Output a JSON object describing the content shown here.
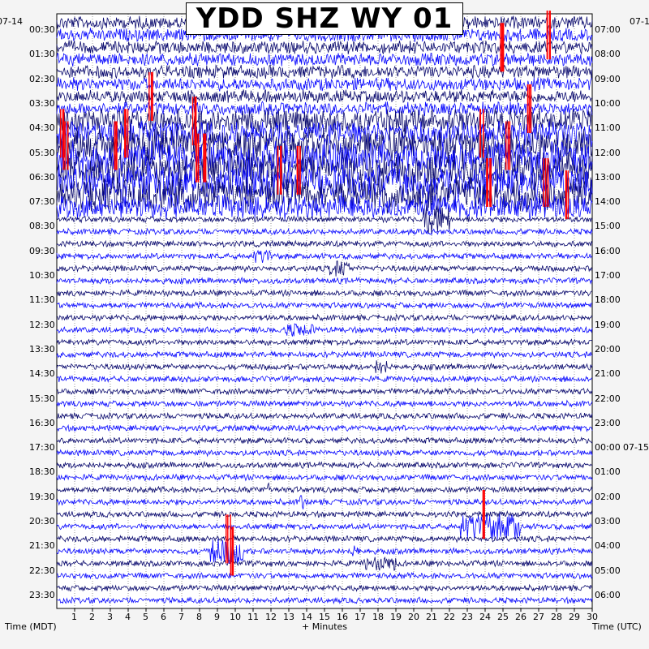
{
  "title": "YDD SHZ WY 01",
  "left_date": "07-14",
  "right_date": "07-1",
  "right_date_mid": "07-15",
  "xlabel": "+ Minutes",
  "left_axis_label": "Time (MDT)",
  "right_axis_label": "Time (UTC)",
  "colors": {
    "trace_dark": "#0a0a6e",
    "trace_blue": "#0a0aff",
    "clip": "#ff0000",
    "background": "#f4f4f4",
    "plot_bg": "#ffffff"
  },
  "chart_data": {
    "type": "line",
    "description_units": "minutes after the start of each row",
    "xlim": [
      0,
      30
    ],
    "x_ticks": [
      1,
      2,
      3,
      4,
      5,
      6,
      7,
      8,
      9,
      10,
      11,
      12,
      13,
      14,
      15,
      16,
      17,
      18,
      19,
      20,
      21,
      22,
      23,
      24,
      25,
      26,
      27,
      28,
      29,
      30
    ],
    "rows": 48,
    "left_ticks": [
      "00:30",
      "01:30",
      "02:30",
      "03:30",
      "04:30",
      "05:30",
      "06:30",
      "07:30",
      "08:30",
      "09:30",
      "10:30",
      "11:30",
      "12:30",
      "13:30",
      "14:30",
      "15:30",
      "16:30",
      "17:30",
      "18:30",
      "19:30",
      "20:30",
      "21:30",
      "22:30",
      "23:30"
    ],
    "right_ticks": [
      "07:00",
      "08:00",
      "09:00",
      "10:00",
      "11:00",
      "12:00",
      "13:00",
      "14:00",
      "15:00",
      "16:00",
      "17:00",
      "18:00",
      "19:00",
      "20:00",
      "21:00",
      "22:00",
      "23:00",
      "00:00",
      "01:00",
      "02:00",
      "03:00",
      "04:00",
      "05:00",
      "06:00"
    ],
    "grid": true
  }
}
